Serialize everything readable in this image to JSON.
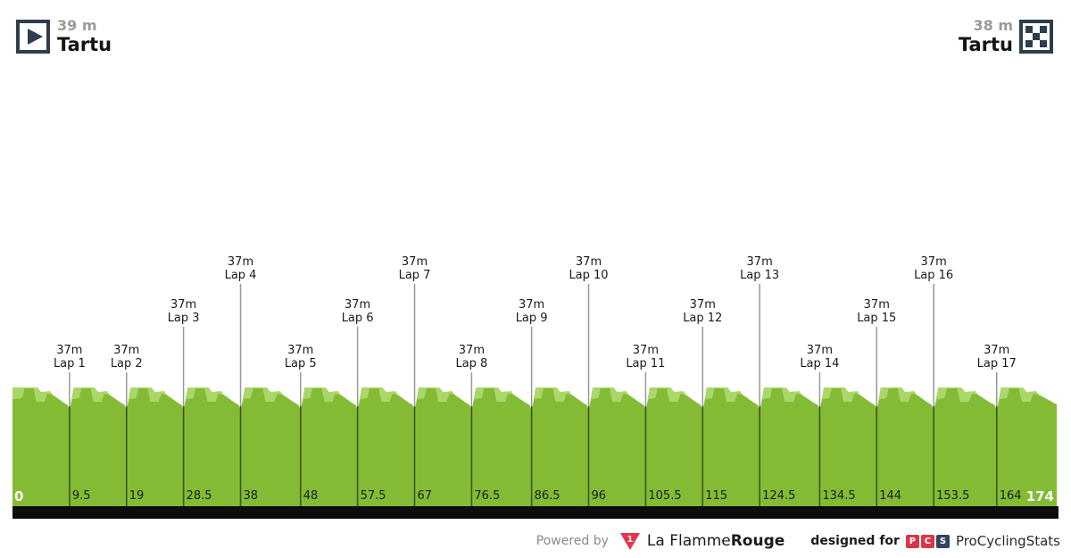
{
  "header": {
    "start": {
      "elevation": "39 m",
      "name": "Tartu"
    },
    "finish": {
      "elevation": "38 m",
      "name": "Tartu"
    }
  },
  "chart_data": {
    "type": "area",
    "description": "Flat circuit race elevation profile with 17 laps",
    "unit_x": "km",
    "unit_y": "m",
    "start_elevation_m": 39,
    "finish_elevation_m": 38,
    "lap_elevation_m": 37,
    "total_distance_km": 174,
    "x_ticks": [
      0,
      9.5,
      19,
      28.5,
      38,
      48,
      57.5,
      67,
      76.5,
      86.5,
      96,
      105.5,
      115,
      124.5,
      134.5,
      144,
      153.5,
      164,
      174
    ],
    "x_tick_labels": [
      "0",
      "9.5",
      "19",
      "28.5",
      "38",
      "48",
      "57.5",
      "67",
      "76.5",
      "86.5",
      "96",
      "105.5",
      "115",
      "124.5",
      "134.5",
      "144",
      "153.5",
      "164",
      "174"
    ],
    "laps": [
      {
        "name": "Lap 1",
        "elevation": "37m",
        "km": 9.5,
        "tier": "low"
      },
      {
        "name": "Lap 2",
        "elevation": "37m",
        "km": 19,
        "tier": "low"
      },
      {
        "name": "Lap 3",
        "elevation": "37m",
        "km": 28.5,
        "tier": "mid"
      },
      {
        "name": "Lap 4",
        "elevation": "37m",
        "km": 38,
        "tier": "high"
      },
      {
        "name": "Lap 5",
        "elevation": "37m",
        "km": 48,
        "tier": "low"
      },
      {
        "name": "Lap 6",
        "elevation": "37m",
        "km": 57.5,
        "tier": "mid"
      },
      {
        "name": "Lap 7",
        "elevation": "37m",
        "km": 67,
        "tier": "high"
      },
      {
        "name": "Lap 8",
        "elevation": "37m",
        "km": 76.5,
        "tier": "low"
      },
      {
        "name": "Lap 9",
        "elevation": "37m",
        "km": 86.5,
        "tier": "mid"
      },
      {
        "name": "Lap 10",
        "elevation": "37m",
        "km": 96,
        "tier": "high"
      },
      {
        "name": "Lap 11",
        "elevation": "37m",
        "km": 105.5,
        "tier": "low"
      },
      {
        "name": "Lap 12",
        "elevation": "37m",
        "km": 115,
        "tier": "mid"
      },
      {
        "name": "Lap 13",
        "elevation": "37m",
        "km": 124.5,
        "tier": "high"
      },
      {
        "name": "Lap 14",
        "elevation": "37m",
        "km": 134.5,
        "tier": "low"
      },
      {
        "name": "Lap 15",
        "elevation": "37m",
        "km": 144,
        "tier": "mid"
      },
      {
        "name": "Lap 16",
        "elevation": "37m",
        "km": 153.5,
        "tier": "high"
      },
      {
        "name": "Lap 17",
        "elevation": "37m",
        "km": 164,
        "tier": "low"
      }
    ],
    "colors": {
      "area_main": "#83bc34",
      "area_light": "#abd76a",
      "lap_line_upper": "#999999",
      "lap_line_inner": "rgba(0,0,0,0.55)",
      "bottom_bar": "#0d0d0d",
      "icon_navy": "#2e3d4f"
    }
  },
  "footer": {
    "powered_by": "Powered by",
    "lfr": {
      "part1": "La Flamme",
      "part2": "Rouge",
      "badge": "1",
      "red": "#e6334b"
    },
    "designed_for": "designed for",
    "pcs": {
      "letters": [
        "P",
        "C",
        "S"
      ],
      "name": "ProCyclingStats"
    }
  }
}
